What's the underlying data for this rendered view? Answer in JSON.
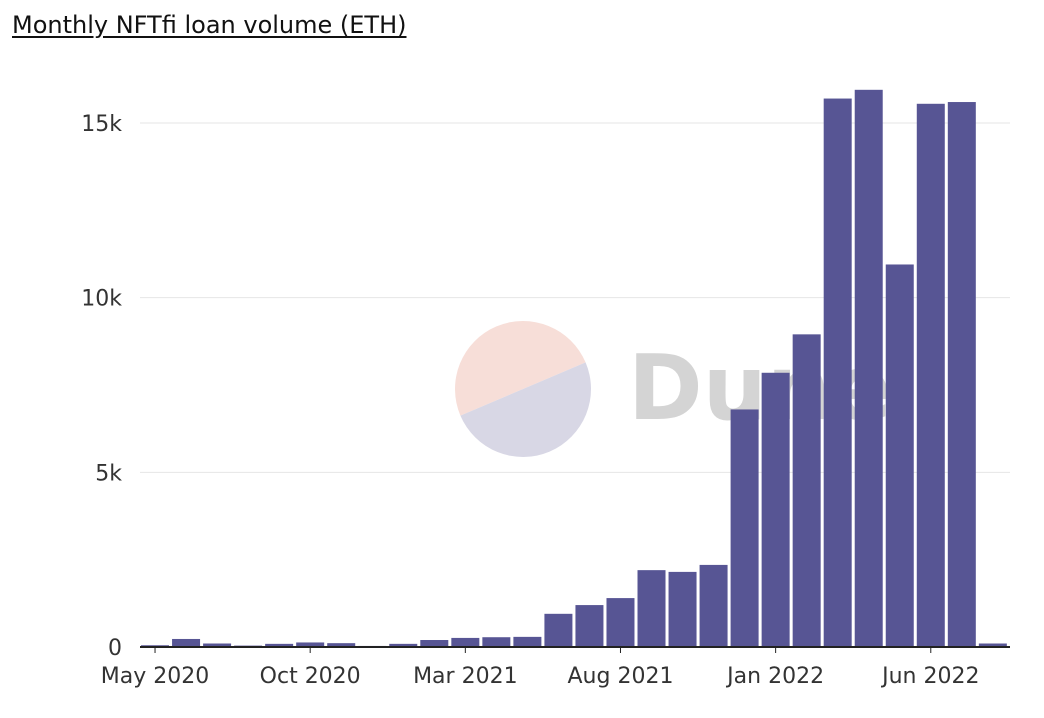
{
  "title": "Monthly NFTfi loan volume (ETH)",
  "watermark": {
    "text": "Dune",
    "color_top": "#f7ded8",
    "color_bottom": "#d8d7e5"
  },
  "colors": {
    "bar": "#575594",
    "grid": "#e6e6e6",
    "axis": "#222222"
  },
  "chart_data": {
    "type": "bar",
    "title": "Monthly NFTfi loan volume (ETH)",
    "xlabel": "",
    "ylabel": "",
    "categories": [
      "Apr 2020",
      "May 2020",
      "Jun 2020",
      "Jul 2020",
      "Aug 2020",
      "Sep 2020",
      "Oct 2020",
      "Nov 2020",
      "Dec 2020",
      "Jan 2021",
      "Feb 2021",
      "Mar 2021",
      "Apr 2021",
      "May 2021",
      "Jun 2021",
      "Jul 2021",
      "Aug 2021",
      "Sep 2021",
      "Oct 2021",
      "Nov 2021",
      "Dec 2021",
      "Jan 2022",
      "Feb 2022",
      "Mar 2022",
      "Apr 2022",
      "May 2022",
      "Jun 2022",
      "Jul 2022",
      "Aug 2022"
    ],
    "values": [
      0,
      50,
      230,
      100,
      40,
      90,
      130,
      110,
      30,
      90,
      200,
      260,
      280,
      290,
      950,
      1200,
      1400,
      2200,
      2150,
      2350,
      6800,
      7850,
      8950,
      15700,
      15950,
      10950,
      15550,
      15600,
      100
    ],
    "x_tick_labels": [
      {
        "index": 1,
        "label": "May 2020"
      },
      {
        "index": 6,
        "label": "Oct 2020"
      },
      {
        "index": 11,
        "label": "Mar 2021"
      },
      {
        "index": 16,
        "label": "Aug 2021"
      },
      {
        "index": 21,
        "label": "Jan 2022"
      },
      {
        "index": 26,
        "label": "Jun 2022"
      }
    ],
    "y_ticks": [
      0,
      5000,
      10000,
      15000
    ],
    "y_tick_labels": [
      "0",
      "5k",
      "10k",
      "15k"
    ],
    "ylim": [
      0,
      15000
    ],
    "grid": true,
    "legend": "none"
  }
}
